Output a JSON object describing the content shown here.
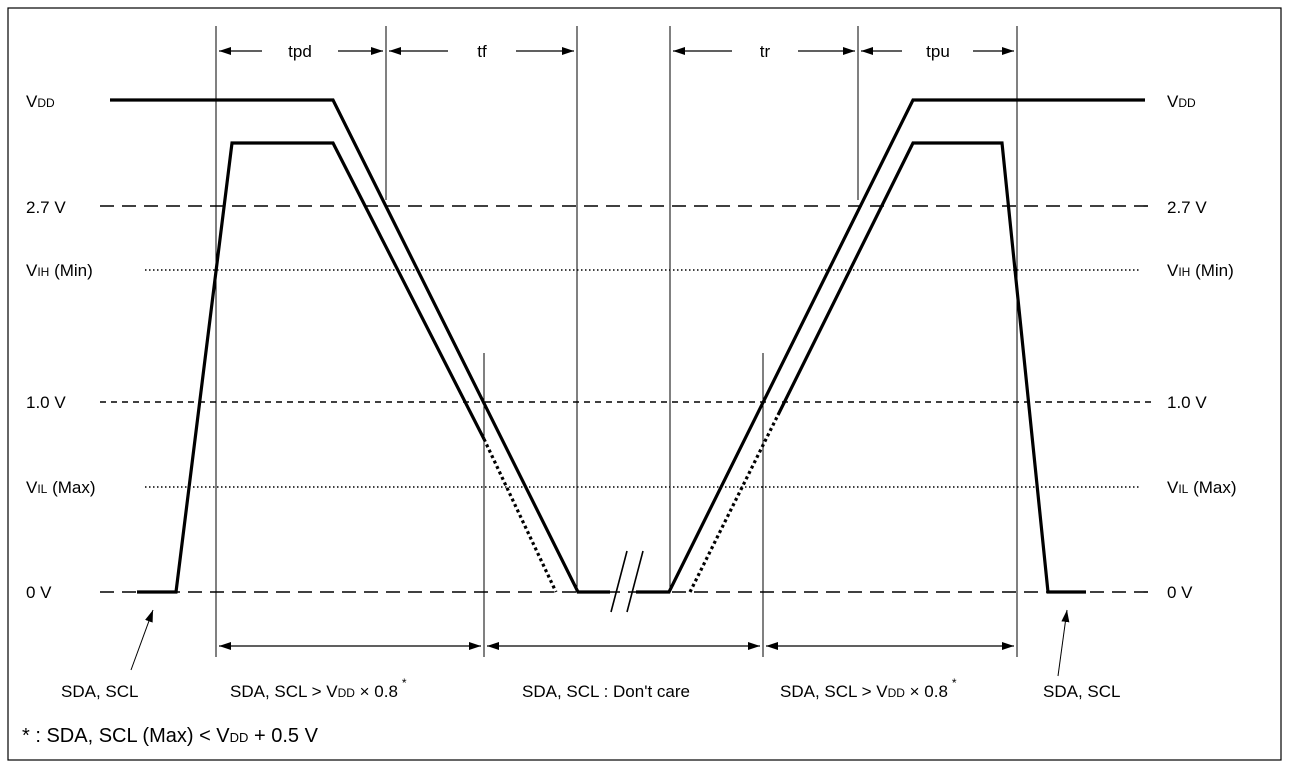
{
  "levels": {
    "vdd": {
      "main": "V",
      "sub": "DD"
    },
    "v27": "2.7 V",
    "vih": {
      "main": "V",
      "sub": "IH",
      "suffix": " (Min)"
    },
    "v10": "1.0 V",
    "vil": {
      "main": "V",
      "sub": "IL",
      "suffix": " (Max)"
    },
    "v0": "0 V"
  },
  "timing": {
    "tpd": "tpd",
    "tf": "tf",
    "tr": "tr",
    "tpu": "tpu"
  },
  "bottom": {
    "left": "SDA, SCL",
    "cond_pre": "SDA, SCL > V",
    "cond_sub": "DD",
    "cond_post": " × 0.8",
    "asterisk": "*",
    "dont_care": "SDA, SCL : Don't care",
    "right": "SDA, SCL"
  },
  "footnote": {
    "pre": "* : SDA, SCL (Max) < V",
    "sub": "DD",
    "post": " + 0.5 V"
  }
}
